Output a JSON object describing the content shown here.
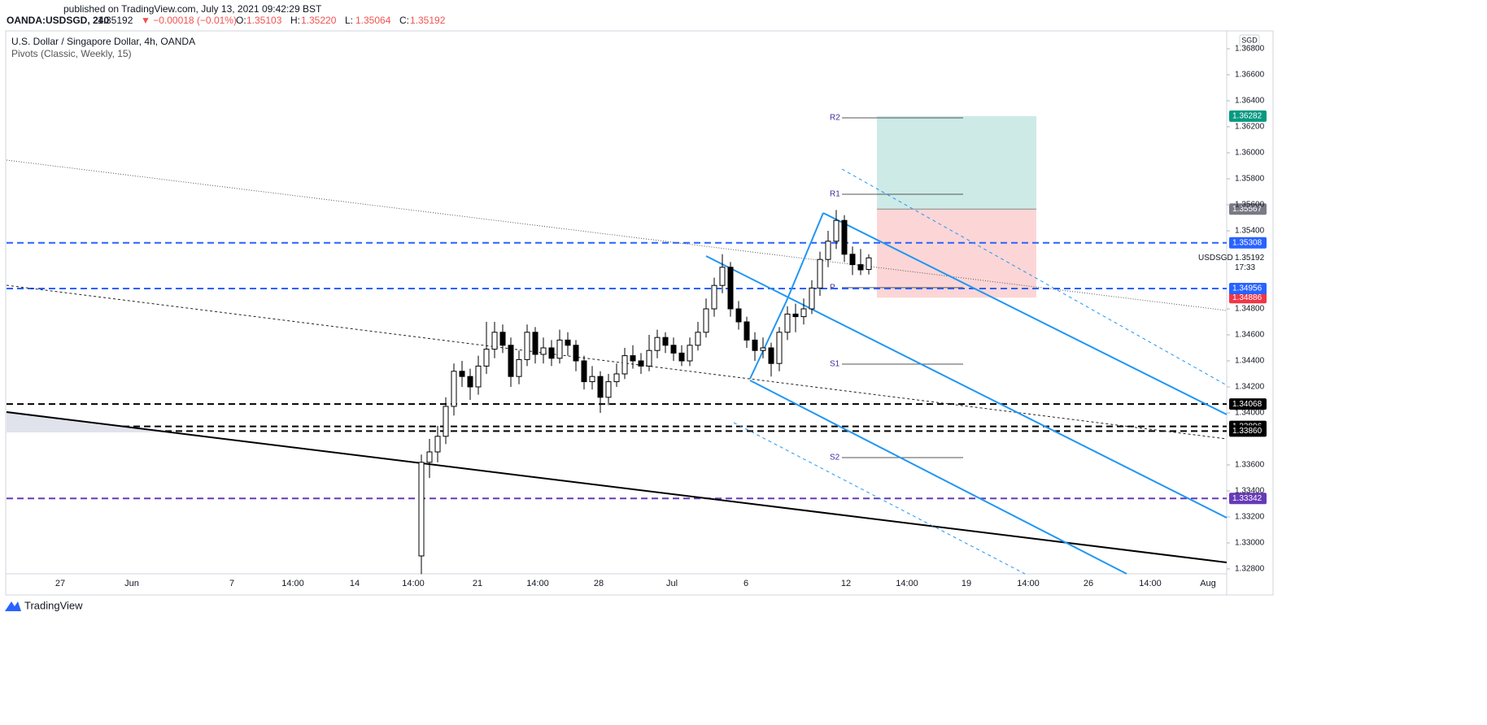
{
  "header": {
    "published": "published on TradingView.com, July 13, 2021 09:42:29 BST",
    "symbol": "OANDA:USDSGD, 240",
    "last": "1.35192",
    "change": "▼ −0.00018 (−0.01%)",
    "ohlc": [
      {
        "key": "O:",
        "value": "1.35103"
      },
      {
        "key": "H:",
        "value": "1.35220"
      },
      {
        "key": "L:",
        "value": "1.35064"
      },
      {
        "key": "C:",
        "value": "1.35192"
      }
    ]
  },
  "legend": [
    "U.S. Dollar / Singapore Dollar, 4h, OANDA",
    "Pivots (Classic, Weekly, 15)"
  ],
  "currency": "SGD",
  "logo": "TradingView",
  "chart_data": {
    "type": "candlestick",
    "ylim": [
      1.327625,
      1.369375
    ],
    "yticks": [
      {
        "value": 1.328,
        "label": "1.32800"
      },
      {
        "value": 1.33,
        "label": "1.33000"
      },
      {
        "value": 1.332,
        "label": "1.33200"
      },
      {
        "value": 1.334,
        "label": "1.33400"
      },
      {
        "value": 1.336,
        "label": "1.33600"
      },
      {
        "value": 1.34,
        "label": "1.34000"
      },
      {
        "value": 1.342,
        "label": "1.34200"
      },
      {
        "value": 1.344,
        "label": "1.34400"
      },
      {
        "value": 1.346,
        "label": "1.34600"
      },
      {
        "value": 1.348,
        "label": "1.34800"
      },
      {
        "value": 1.354,
        "label": "1.35400"
      },
      {
        "value": 1.356,
        "label": "1.35600"
      },
      {
        "value": 1.358,
        "label": "1.35800"
      },
      {
        "value": 1.36,
        "label": "1.36000"
      },
      {
        "value": 1.362,
        "label": "1.36200"
      },
      {
        "value": 1.364,
        "label": "1.36400"
      },
      {
        "value": 1.366,
        "label": "1.36600"
      },
      {
        "value": 1.368,
        "label": "1.36800"
      }
    ],
    "x_labels": [
      "27",
      "Jun",
      "7",
      "14:00",
      "14",
      "14:00",
      "21",
      "14:00",
      "28",
      "Jul",
      "6",
      "12",
      "14:00",
      "19",
      "14:00",
      "26",
      "14:00",
      "Aug"
    ],
    "grid": false,
    "series": [
      {
        "name": "USDSGD",
        "up_color": "#ffffff",
        "down_color": "#000000",
        "open": [
          1.329,
          1.3362,
          1.337,
          1.3382,
          1.3405,
          1.3432,
          1.3428,
          1.342,
          1.3436,
          1.3449,
          1.3462,
          1.3452,
          1.3428,
          1.3441,
          1.3462,
          1.3445,
          1.345,
          1.3442,
          1.3456,
          1.3452,
          1.344,
          1.3424,
          1.3428,
          1.3412,
          1.3424,
          1.343,
          1.3444,
          1.344,
          1.3436,
          1.3448,
          1.3458,
          1.3452,
          1.3446,
          1.344,
          1.3452,
          1.3462,
          1.348,
          1.3498,
          1.3512,
          1.348,
          1.347,
          1.3456,
          1.3448,
          1.345,
          1.3438,
          1.3462,
          1.3476,
          1.3474,
          1.348,
          1.3496,
          1.3518,
          1.3532,
          1.3548,
          1.3522,
          1.3514,
          1.35103
        ],
        "high": [
          1.3368,
          1.338,
          1.339,
          1.3412,
          1.3438,
          1.344,
          1.3434,
          1.3444,
          1.347,
          1.347,
          1.3468,
          1.3458,
          1.3448,
          1.3468,
          1.3466,
          1.3458,
          1.3456,
          1.3464,
          1.3462,
          1.3456,
          1.3444,
          1.3436,
          1.3432,
          1.343,
          1.3438,
          1.345,
          1.3452,
          1.3446,
          1.346,
          1.3464,
          1.3462,
          1.3458,
          1.3452,
          1.3458,
          1.347,
          1.3488,
          1.3504,
          1.3522,
          1.3516,
          1.3486,
          1.3474,
          1.3462,
          1.3458,
          1.3454,
          1.3466,
          1.3482,
          1.3484,
          1.3488,
          1.3502,
          1.3524,
          1.354,
          1.3556,
          1.3552,
          1.3528,
          1.3526,
          1.3522
        ],
        "low": [
          1.3276,
          1.335,
          1.3362,
          1.3376,
          1.3398,
          1.342,
          1.341,
          1.3414,
          1.343,
          1.3442,
          1.3446,
          1.342,
          1.3422,
          1.3436,
          1.3438,
          1.3438,
          1.3436,
          1.3438,
          1.3444,
          1.3432,
          1.3418,
          1.3418,
          1.34,
          1.3406,
          1.342,
          1.3426,
          1.3434,
          1.343,
          1.3432,
          1.3442,
          1.3446,
          1.344,
          1.3436,
          1.3436,
          1.3448,
          1.3458,
          1.3474,
          1.3492,
          1.3474,
          1.3464,
          1.345,
          1.344,
          1.3442,
          1.3428,
          1.3432,
          1.3456,
          1.3462,
          1.3468,
          1.3476,
          1.349,
          1.3512,
          1.3526,
          1.3516,
          1.3506,
          1.3506,
          1.35064
        ],
        "close": [
          1.3362,
          1.337,
          1.3382,
          1.3405,
          1.3432,
          1.3428,
          1.342,
          1.3436,
          1.3449,
          1.3462,
          1.3452,
          1.3428,
          1.3441,
          1.3462,
          1.3445,
          1.345,
          1.3442,
          1.3456,
          1.3452,
          1.344,
          1.3424,
          1.3428,
          1.3412,
          1.3424,
          1.343,
          1.3444,
          1.344,
          1.3436,
          1.3448,
          1.3458,
          1.3452,
          1.3446,
          1.344,
          1.3452,
          1.3462,
          1.348,
          1.3498,
          1.3512,
          1.348,
          1.347,
          1.3456,
          1.3448,
          1.345,
          1.3438,
          1.3462,
          1.3476,
          1.3474,
          1.348,
          1.3496,
          1.3518,
          1.3532,
          1.3548,
          1.3522,
          1.3514,
          1.351,
          1.35192
        ]
      }
    ],
    "last_price": {
      "value": 1.35192,
      "countdown": "17:33"
    },
    "levels": [
      {
        "value": 1.35308,
        "color": "#2962ff"
      },
      {
        "value": 1.34956,
        "color": "#2962ff"
      },
      {
        "value": 1.34068,
        "color": "#000000"
      },
      {
        "value": 1.33896,
        "color": "#000000"
      },
      {
        "value": 1.3386,
        "label": "1.33860",
        "color": "#000000"
      },
      {
        "value": 1.33342,
        "color": "#673ab7"
      }
    ],
    "pivots": [
      {
        "name": "R2",
        "value": 1.36269
      },
      {
        "name": "R1",
        "value": 1.35681
      },
      {
        "name": "P",
        "value": 1.34963
      },
      {
        "name": "S1",
        "value": 1.34375
      },
      {
        "name": "S2",
        "value": 1.33656
      }
    ],
    "position": {
      "target": {
        "value": 1.36282,
        "color": "#089981"
      },
      "entry": {
        "value": 1.35567,
        "color": "#787b86"
      },
      "stop": {
        "value": 1.34886,
        "color": "#f23645"
      }
    }
  }
}
